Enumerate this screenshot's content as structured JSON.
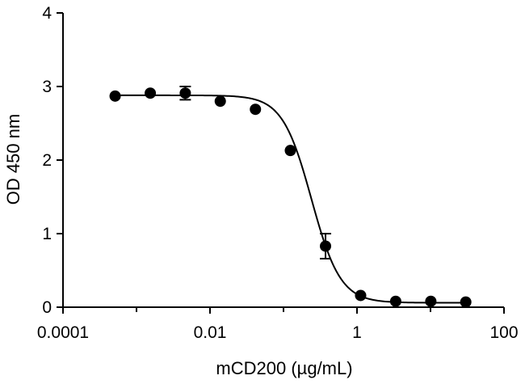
{
  "chart_data": {
    "type": "scatter",
    "xlabel": "mCD200 (µg/mL)",
    "ylabel": "OD 450 nm",
    "x_scale": "log",
    "xlim": [
      0.0001,
      100
    ],
    "ylim": [
      0,
      4
    ],
    "x_ticks": [
      {
        "value": 0.0001,
        "label": "0.0001"
      },
      {
        "value": 0.01,
        "label": "0.01"
      },
      {
        "value": 1,
        "label": "1"
      },
      {
        "value": 100,
        "label": "100"
      }
    ],
    "y_ticks": [
      {
        "value": 0,
        "label": "0"
      },
      {
        "value": 1,
        "label": "1"
      },
      {
        "value": 2,
        "label": "2"
      },
      {
        "value": 3,
        "label": "3"
      },
      {
        "value": 4,
        "label": "4"
      }
    ],
    "grid": false,
    "legend": "none",
    "points": [
      {
        "x": 0.000512,
        "y": 2.87,
        "err": 0
      },
      {
        "x": 0.00154,
        "y": 2.91,
        "err": 0
      },
      {
        "x": 0.00461,
        "y": 2.91,
        "err": 0.09
      },
      {
        "x": 0.0138,
        "y": 2.8,
        "err": 0
      },
      {
        "x": 0.0415,
        "y": 2.69,
        "err": 0
      },
      {
        "x": 0.124,
        "y": 2.13,
        "err": 0
      },
      {
        "x": 0.373,
        "y": 0.83,
        "err": 0.17
      },
      {
        "x": 1.12,
        "y": 0.16,
        "err": 0
      },
      {
        "x": 3.36,
        "y": 0.08,
        "err": 0
      },
      {
        "x": 10.1,
        "y": 0.08,
        "err": 0
      },
      {
        "x": 30.2,
        "y": 0.07,
        "err": 0
      }
    ],
    "fit": {
      "model": "4PL",
      "top": 2.88,
      "bottom": 0.06,
      "ic50": 0.24,
      "hill": 2.2
    }
  }
}
